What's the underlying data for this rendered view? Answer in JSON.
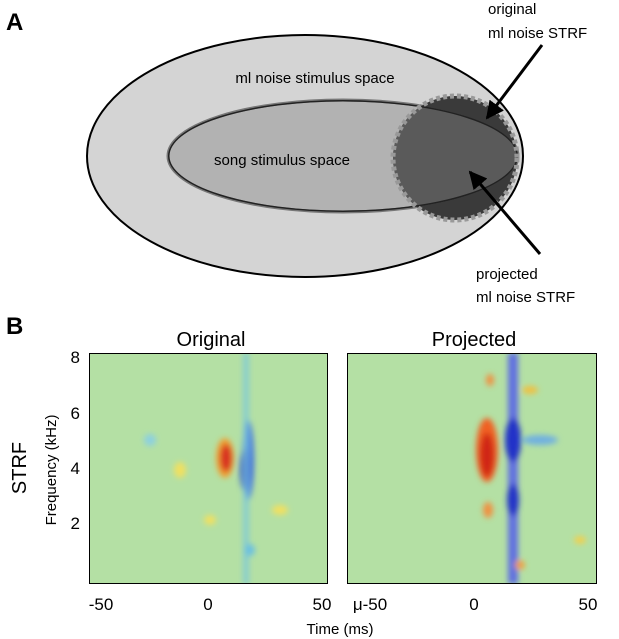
{
  "panel_a": {
    "label": "A",
    "outer_label": "ml noise stimulus space",
    "inner_label": "song stimulus space",
    "original_label": [
      "original",
      "ml noise STRF"
    ],
    "projected_label": [
      "projected",
      "ml noise STRF"
    ]
  },
  "panel_b": {
    "label": "B",
    "row_label": "STRF",
    "y_label": "Frequency (kHz)",
    "x_label": "Time (ms)",
    "yticks": [
      "8",
      "6",
      "4",
      "2"
    ],
    "plots": [
      {
        "title": "Original",
        "xticks": [
          "-50",
          "0",
          "50"
        ]
      },
      {
        "title": "Projected",
        "xticks": [
          "μ-50",
          "0",
          "50"
        ]
      }
    ]
  }
}
